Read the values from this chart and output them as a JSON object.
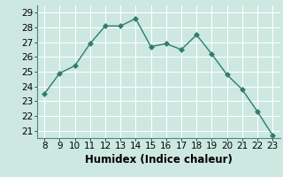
{
  "x": [
    8,
    9,
    10,
    11,
    12,
    13,
    14,
    15,
    16,
    17,
    18,
    19,
    20,
    21,
    22,
    23
  ],
  "y": [
    23.5,
    24.9,
    25.4,
    26.9,
    28.1,
    28.1,
    28.6,
    26.7,
    26.9,
    26.5,
    27.5,
    26.2,
    24.8,
    23.8,
    22.3,
    20.7
  ],
  "title": "",
  "xlabel": "Humidex (Indice chaleur)",
  "ylabel": "",
  "xlim": [
    7.5,
    23.5
  ],
  "ylim": [
    20.5,
    29.5
  ],
  "yticks": [
    21,
    22,
    23,
    24,
    25,
    26,
    27,
    28,
    29
  ],
  "xticks": [
    8,
    9,
    10,
    11,
    12,
    13,
    14,
    15,
    16,
    17,
    18,
    19,
    20,
    21,
    22,
    23
  ],
  "line_color": "#2e7d6e",
  "marker_color": "#2e7d6e",
  "bg_color": "#cce8e0",
  "grid_color": "#ffffff",
  "tick_fontsize": 7.5,
  "label_fontsize": 8.5
}
